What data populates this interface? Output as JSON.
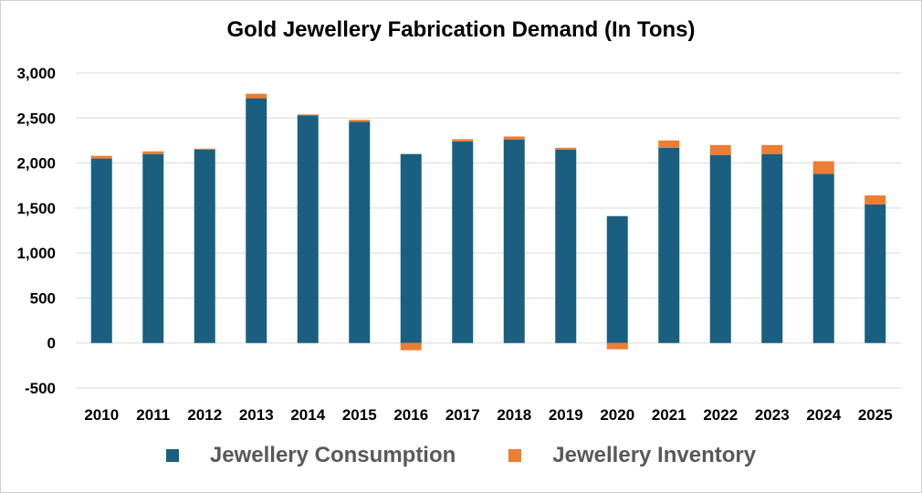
{
  "chart_data": {
    "type": "bar",
    "stacked": true,
    "title": "Gold Jewellery Fabrication Demand (In Tons)",
    "xlabel": "",
    "ylabel": "",
    "categories": [
      "2010",
      "2011",
      "2012",
      "2013",
      "2014",
      "2015",
      "2016",
      "2017",
      "2018",
      "2019",
      "2020",
      "2021",
      "2022",
      "2023",
      "2024",
      "2025"
    ],
    "series": [
      {
        "name": "Jewellery Consumption",
        "color": "#1a5f80",
        "values": [
          2050,
          2100,
          2150,
          2720,
          2530,
          2460,
          2100,
          2240,
          2260,
          2150,
          1410,
          2170,
          2090,
          2100,
          1880,
          1540
        ]
      },
      {
        "name": "Jewellery Inventory",
        "color": "#ed7d31",
        "values": [
          30,
          30,
          10,
          50,
          10,
          20,
          -80,
          25,
          35,
          20,
          -70,
          80,
          110,
          100,
          140,
          100
        ]
      }
    ],
    "ylim": [
      -500,
      3000
    ],
    "yticks": [
      -500,
      0,
      500,
      1000,
      1500,
      2000,
      2500,
      3000
    ],
    "ytick_labels": [
      "-500",
      "0",
      "500",
      "1,000",
      "1,500",
      "2,000",
      "2,500",
      "3,000"
    ],
    "grid": true,
    "legend_position": "bottom"
  }
}
